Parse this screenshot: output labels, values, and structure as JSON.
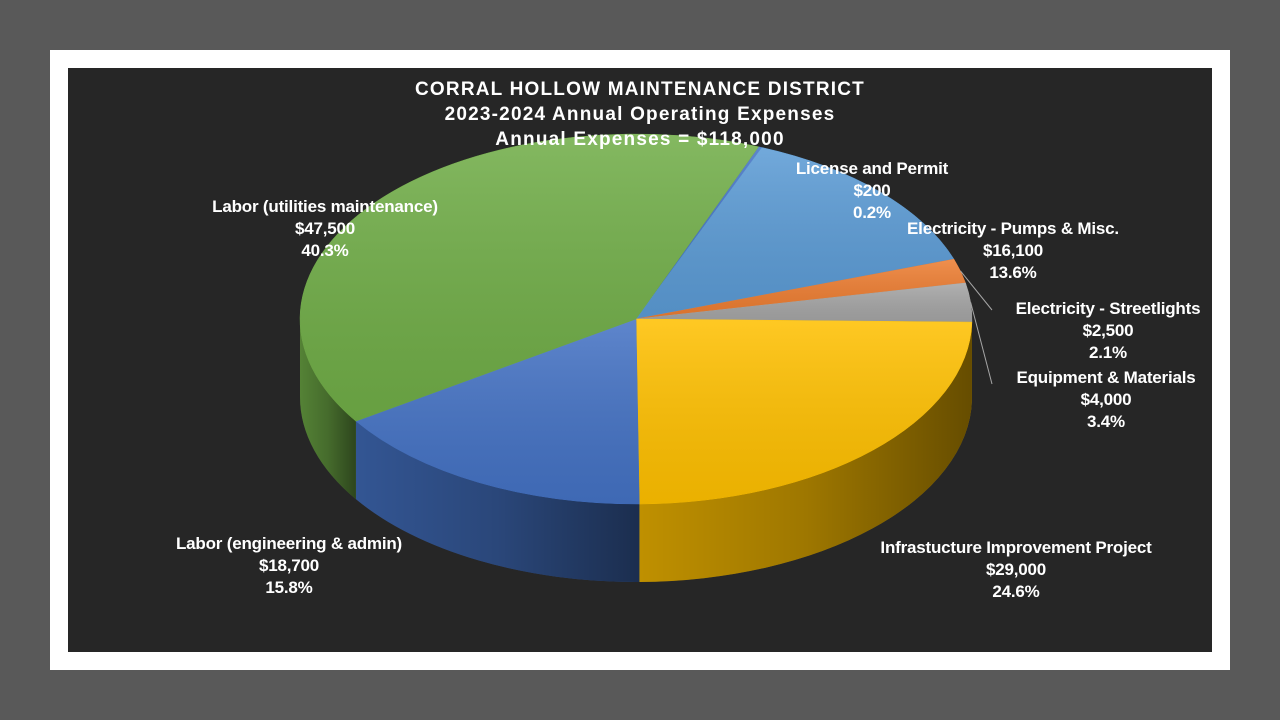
{
  "chart_data": {
    "type": "pie",
    "title_lines": [
      "CORRAL HOLLOW MAINTENANCE DISTRICT",
      "2023-2024 Annual Operating Expenses",
      "Annual Expenses = $118,000"
    ],
    "slices": [
      {
        "name": "License and Permit",
        "amount": "$200",
        "percent": "0.2%",
        "value": 200,
        "color": "#4472c4"
      },
      {
        "name": "Electricity - Pumps & Misc.",
        "amount": "$16,100",
        "percent": "13.6%",
        "value": 16100,
        "color": "#5b9bd5"
      },
      {
        "name": "Electricity - Streetlights",
        "amount": "$2,500",
        "percent": "2.1%",
        "value": 2500,
        "color": "#ed7d31"
      },
      {
        "name": "Equipment & Materials",
        "amount": "$4,000",
        "percent": "3.4%",
        "value": 4000,
        "color": "#a5a5a5"
      },
      {
        "name": "Infrastucture Improvement Project",
        "amount": "$29,000",
        "percent": "24.6%",
        "value": 29000,
        "color": "#ffc000"
      },
      {
        "name": "Labor (engineering & admin)",
        "amount": "$18,700",
        "percent": "15.8%",
        "value": 18700,
        "color": "#4472c4"
      },
      {
        "name": "Labor (utilities maintenance)",
        "amount": "$47,500",
        "percent": "40.3%",
        "value": 47500,
        "color": "#70ad47"
      }
    ],
    "legend": "none",
    "style": "3d-pie"
  }
}
